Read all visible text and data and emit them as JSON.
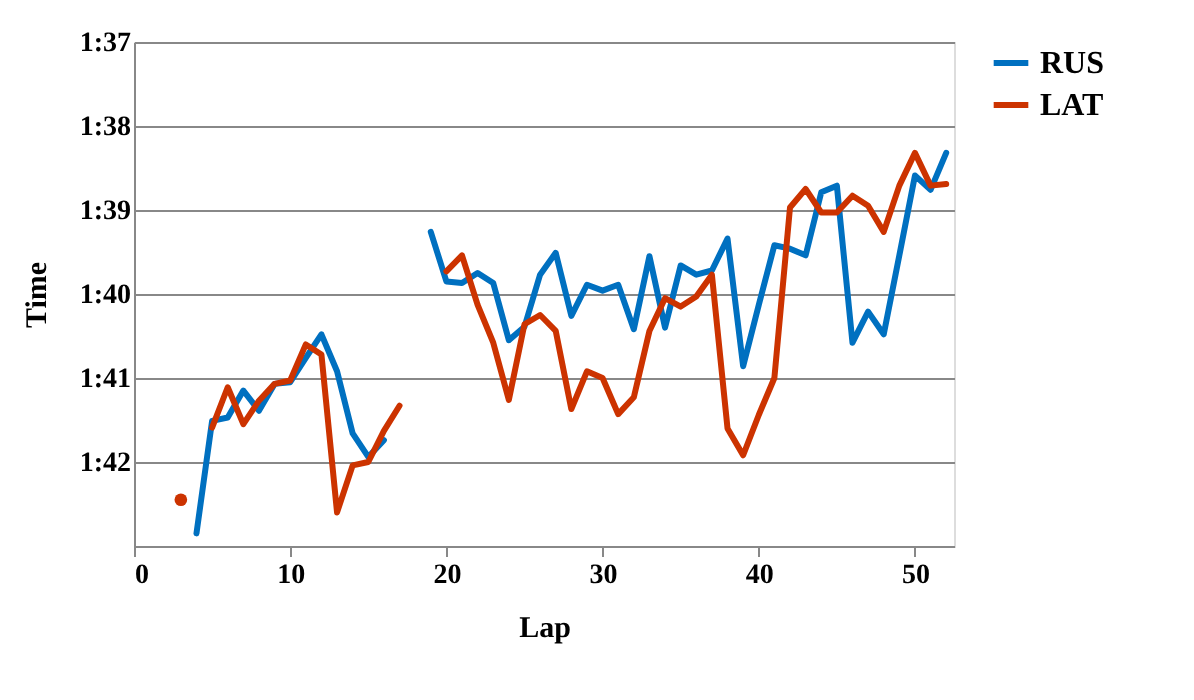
{
  "chart_data": {
    "type": "line",
    "xlabel": "Lap",
    "ylabel": "Time",
    "x": [
      3,
      4,
      5,
      6,
      7,
      8,
      9,
      10,
      11,
      12,
      13,
      14,
      15,
      16,
      17,
      18,
      19,
      20,
      21,
      22,
      23,
      24,
      25,
      26,
      27,
      28,
      29,
      30,
      31,
      32,
      33,
      34,
      35,
      36,
      37,
      38,
      39,
      40,
      41,
      42,
      43,
      44,
      45,
      46,
      47,
      48,
      49,
      50,
      51,
      52
    ],
    "series": [
      {
        "name": "RUS",
        "color": "#0070c0",
        "values": [
          null,
          102.85,
          101.51,
          101.47,
          101.15,
          101.39,
          101.07,
          101.05,
          100.76,
          100.48,
          100.92,
          101.66,
          101.94,
          101.74,
          null,
          null,
          99.26,
          99.85,
          99.87,
          99.75,
          99.87,
          100.55,
          100.39,
          99.77,
          99.51,
          100.26,
          99.89,
          99.96,
          99.89,
          100.42,
          99.55,
          100.4,
          99.66,
          99.77,
          99.72,
          99.34,
          100.86,
          100.13,
          99.42,
          99.46,
          99.54,
          98.79,
          98.71,
          100.58,
          100.21,
          100.48,
          99.54,
          98.59,
          98.76,
          98.32
        ]
      },
      {
        "name": "LAT",
        "color": "#cc3300",
        "values": [
          102.45,
          null,
          101.59,
          101.11,
          101.55,
          101.27,
          101.07,
          101.03,
          100.6,
          100.72,
          102.6,
          102.04,
          102.0,
          101.63,
          101.33,
          null,
          null,
          99.73,
          99.54,
          100.13,
          100.58,
          101.26,
          100.36,
          100.25,
          100.44,
          101.37,
          100.92,
          101.0,
          101.43,
          101.23,
          100.44,
          100.05,
          100.15,
          100.03,
          99.77,
          101.6,
          101.92,
          101.44,
          101.0,
          98.97,
          98.75,
          99.03,
          99.03,
          98.83,
          98.95,
          99.26,
          98.71,
          98.32,
          98.71,
          98.69
        ]
      }
    ],
    "xlim": [
      0,
      52.5
    ],
    "xticks": [
      0,
      10,
      20,
      30,
      40,
      50
    ],
    "ylim": [
      103,
      97
    ],
    "yticks": [
      {
        "value": 97,
        "label": "1:37"
      },
      {
        "value": 98,
        "label": "1:38"
      },
      {
        "value": 99,
        "label": "1:39"
      },
      {
        "value": 100,
        "label": "1:40"
      },
      {
        "value": 101,
        "label": "1:41"
      },
      {
        "value": 102,
        "label": "1:42"
      }
    ],
    "grid": "y",
    "legend": "right",
    "marker": "none",
    "line_style": "solid"
  }
}
